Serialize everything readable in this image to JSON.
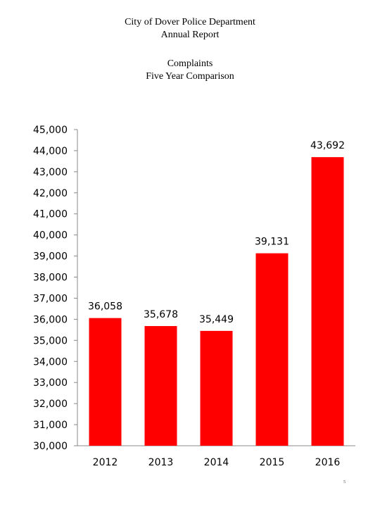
{
  "header": {
    "org": "City of Dover Police Department",
    "report": "Annual Report",
    "title": "Complaints",
    "subtitle": "Five Year Comparison"
  },
  "page_number": "5",
  "chart_data": {
    "type": "bar",
    "title": "Complaints",
    "subtitle": "Five Year Comparison",
    "categories": [
      "2012",
      "2013",
      "2014",
      "2015",
      "2016"
    ],
    "values": [
      36058,
      35678,
      35449,
      39131,
      43692
    ],
    "value_labels": [
      "36,058",
      "35,678",
      "35,449",
      "39,131",
      "43,692"
    ],
    "ylim": [
      30000,
      45000
    ],
    "yticks": [
      30000,
      31000,
      32000,
      33000,
      34000,
      35000,
      36000,
      37000,
      38000,
      39000,
      40000,
      41000,
      42000,
      43000,
      44000,
      45000
    ],
    "ytick_labels": [
      "30,000",
      "31,000",
      "32,000",
      "33,000",
      "34,000",
      "35,000",
      "36,000",
      "37,000",
      "38,000",
      "39,000",
      "40,000",
      "41,000",
      "42,000",
      "43,000",
      "44,000",
      "45,000"
    ],
    "xlabel": "",
    "ylabel": "",
    "grid": false,
    "legend": "none",
    "bar_color": "#ff0000"
  }
}
